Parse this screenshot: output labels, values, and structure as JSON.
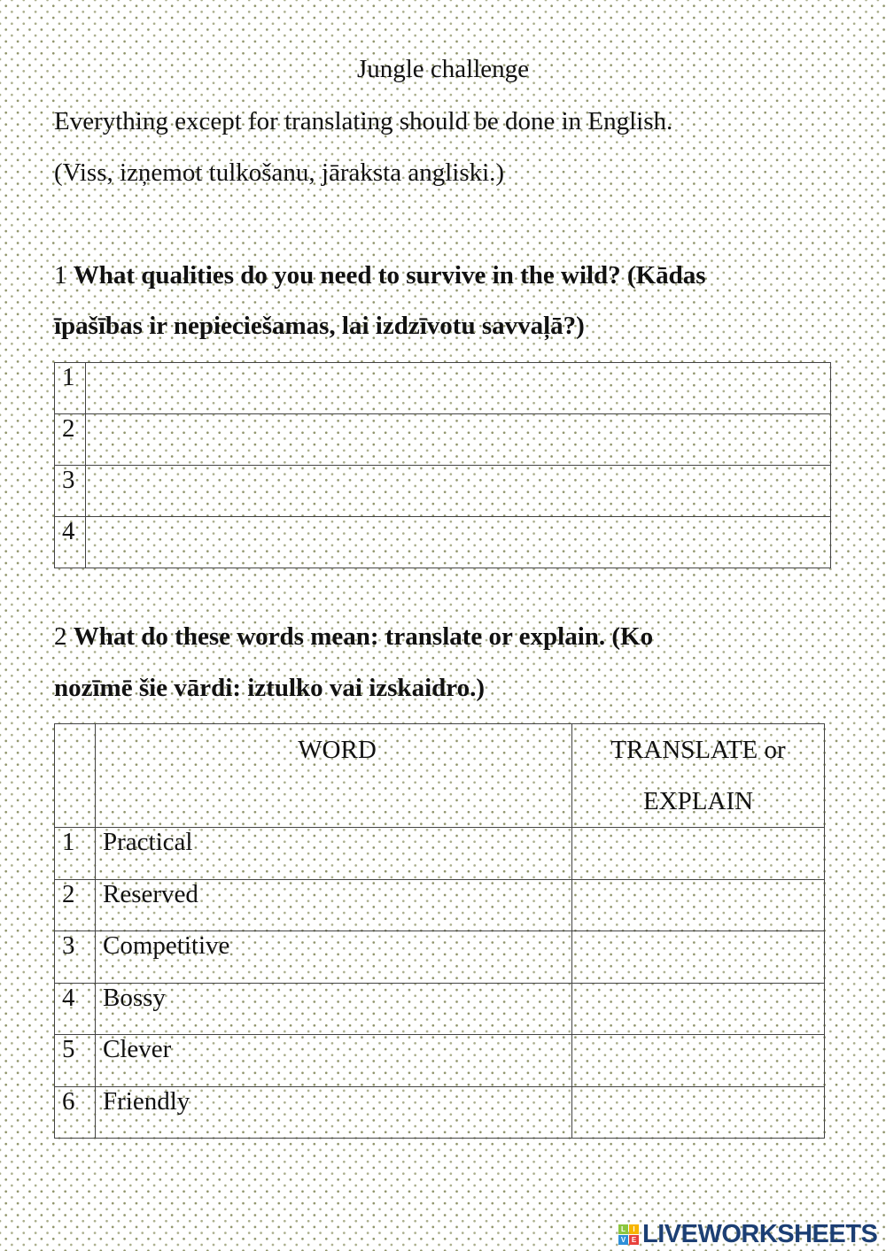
{
  "title": "Jungle challenge",
  "instructions": [
    "Everything except for translating should be done in English.",
    "(Viss, izņemot tulkošanu, jāraksta angliski.)"
  ],
  "q1": {
    "number": "1",
    "text_line1": "What qualities do you need to survive in the wild? (Kādas",
    "text_line2": "īpašības ir nepieciešamas, lai izdzīvotu savvaļā?)",
    "rows": [
      "1",
      "2",
      "3",
      "4"
    ]
  },
  "q2": {
    "number": "2",
    "text_line1": "What do these words mean: translate or explain. (Ko",
    "text_line2": "nozīmē šie vārdi: iztulko vai izskaidro.)",
    "headers": {
      "word": "WORD",
      "explain_line1": "TRANSLATE or",
      "explain_line2": "EXPLAIN"
    },
    "rows": [
      {
        "n": "1",
        "word": "Practical"
      },
      {
        "n": "2",
        "word": "Reserved"
      },
      {
        "n": "3",
        "word": "Competitive"
      },
      {
        "n": "4",
        "word": "Bossy"
      },
      {
        "n": "5",
        "word": "Clever"
      },
      {
        "n": "6",
        "word": "Friendly"
      }
    ]
  },
  "logo": {
    "text": "LIVEWORKSHEETS",
    "cube_letters": [
      "L",
      "I",
      "V",
      "E"
    ],
    "colors": [
      "#8cc63f",
      "#f7b500",
      "#2e8fd8",
      "#e8413c"
    ]
  }
}
